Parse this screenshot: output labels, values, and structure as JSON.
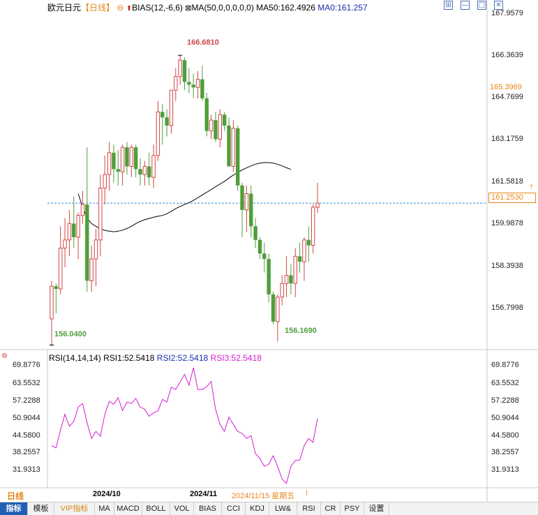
{
  "header": {
    "symbol": "欧元日元",
    "period": "【日线】",
    "indicator1": "BIAS(12,-6,6)",
    "indicator2": "MA(50,0,0,0,0,0)",
    "ma50_label": "MA50:162.4926",
    "ma0_label": "MA0:161.257",
    "controls": [
      "⊞",
      "—",
      "□",
      "✕"
    ]
  },
  "price_axis": {
    "ticks": [
      "167.9579",
      "166.3639",
      "164.7699",
      "163.1759",
      "161.5818",
      "159.9878",
      "158.3938",
      "156.7998"
    ],
    "current_price": "161.2530",
    "pointer_price": "165.3969"
  },
  "annotations": {
    "high_label": "166.6810",
    "low_label_1": "156.0400",
    "low_label_2": "156.1690"
  },
  "rsi_panel": {
    "title": "RSI(14,14,14)",
    "rsi1": "RSI1:52.5418",
    "rsi2": "RSI2:52.5418",
    "rsi3": "RSI3:52.5418",
    "ticks": [
      "69.8776",
      "63.5532",
      "57.2288",
      "50.9044",
      "44.5800",
      "38.2557",
      "31.9313"
    ]
  },
  "time_axis": {
    "period_label": "日线",
    "date1": "2024/10",
    "date2": "2024/11",
    "cursor_date": "2024/11/15 星期五"
  },
  "tabs": [
    "指标",
    "模板",
    "VIP指标",
    "MA",
    "MACD",
    "BOLL",
    "VOL",
    "BIAS",
    "CCI",
    "KDJ",
    "LW&",
    "RSI",
    "CR",
    "PSY",
    "设置"
  ],
  "colors": {
    "up": "#d04545",
    "down": "#4f9e3a",
    "ma": "#000000",
    "rsi": "#d21dd2",
    "accent": "#1f5fb5",
    "current": "#e8861a"
  },
  "chart_data": [
    {
      "type": "candlestick",
      "title": "欧元日元【日线】",
      "ylim": [
        156.0,
        168.3
      ],
      "series": [
        {
          "name": "candles",
          "ohlc": [
            [
              157.0,
              158.4,
              156.04,
              158.2
            ],
            [
              158.2,
              158.3,
              157.2,
              158.1
            ],
            [
              158.1,
              160.4,
              157.9,
              159.6
            ],
            [
              159.6,
              160.7,
              158.9,
              159.9
            ],
            [
              159.9,
              161.0,
              159.3,
              160.5
            ],
            [
              160.5,
              161.5,
              159.6,
              160.0
            ],
            [
              160.0,
              160.9,
              159.2,
              160.8
            ],
            [
              160.8,
              161.7,
              160.5,
              161.2
            ],
            [
              161.2,
              163.3,
              158.0,
              158.4
            ],
            [
              158.4,
              159.7,
              158.0,
              159.2
            ],
            [
              159.2,
              160.3,
              158.2,
              159.9
            ],
            [
              159.9,
              162.3,
              159.3,
              161.8
            ],
            [
              161.8,
              163.0,
              161.2,
              162.3
            ],
            [
              162.3,
              163.5,
              161.7,
              163.1
            ],
            [
              163.1,
              163.4,
              162.0,
              162.5
            ],
            [
              162.5,
              163.2,
              161.9,
              162.4
            ],
            [
              162.4,
              163.4,
              161.9,
              163.3
            ],
            [
              163.3,
              163.5,
              162.3,
              162.6
            ],
            [
              162.6,
              163.4,
              162.2,
              163.3
            ],
            [
              163.3,
              163.4,
              162.2,
              162.5
            ],
            [
              162.5,
              162.9,
              161.9,
              162.3
            ],
            [
              162.3,
              162.8,
              161.9,
              162.6
            ],
            [
              162.6,
              163.1,
              161.9,
              162.2
            ],
            [
              162.2,
              163.4,
              161.8,
              163.0
            ],
            [
              163.0,
              165.0,
              162.8,
              164.6
            ],
            [
              164.6,
              164.9,
              163.4,
              164.4
            ],
            [
              164.4,
              164.7,
              163.7,
              164.1
            ],
            [
              164.1,
              165.4,
              163.8,
              165.4
            ],
            [
              165.4,
              166.2,
              165.0,
              165.9
            ],
            [
              165.9,
              166.68,
              165.6,
              166.5
            ],
            [
              166.5,
              166.6,
              165.4,
              165.7
            ],
            [
              165.7,
              166.2,
              165.3,
              165.6
            ],
            [
              165.6,
              166.0,
              165.1,
              165.5
            ],
            [
              165.5,
              166.1,
              165.1,
              165.8
            ],
            [
              165.8,
              166.3,
              165.0,
              165.1
            ],
            [
              165.1,
              165.3,
              163.7,
              163.9
            ],
            [
              163.9,
              164.5,
              163.6,
              164.3
            ],
            [
              164.3,
              164.6,
              163.5,
              163.6
            ],
            [
              163.6,
              164.7,
              163.3,
              164.5
            ],
            [
              164.5,
              164.6,
              163.9,
              164.1
            ],
            [
              164.1,
              164.4,
              162.6,
              162.6
            ],
            [
              162.6,
              164.3,
              162.4,
              164.0
            ],
            [
              164.0,
              164.1,
              161.7,
              161.9
            ],
            [
              161.9,
              162.0,
              160.0,
              161.0
            ],
            [
              161.0,
              161.9,
              160.2,
              161.6
            ],
            [
              161.6,
              161.9,
              160.0,
              160.4
            ],
            [
              160.4,
              160.7,
              159.6,
              159.9
            ],
            [
              159.9,
              160.0,
              159.2,
              159.4
            ],
            [
              159.4,
              159.8,
              158.7,
              159.2
            ],
            [
              159.2,
              159.4,
              157.6,
              157.9
            ],
            [
              157.9,
              158.0,
              156.8,
              156.9
            ],
            [
              156.9,
              157.9,
              156.169,
              157.8
            ],
            [
              157.8,
              158.6,
              157.5,
              158.3
            ],
            [
              158.3,
              159.3,
              157.8,
              158.6
            ],
            [
              158.6,
              159.0,
              157.9,
              158.3
            ],
            [
              158.3,
              159.6,
              157.8,
              159.3
            ],
            [
              159.3,
              159.8,
              158.7,
              159.1
            ],
            [
              159.1,
              160.0,
              158.4,
              159.9
            ],
            [
              159.9,
              160.4,
              159.1,
              159.7
            ],
            [
              159.7,
              161.2,
              159.4,
              161.1
            ],
            [
              161.1,
              162.0,
              160.9,
              161.25
            ]
          ]
        },
        {
          "name": "MA50",
          "values": [
            161.6,
            161.1,
            160.7,
            160.5,
            160.4,
            160.3,
            160.25,
            160.22,
            160.2,
            160.22,
            160.26,
            160.32,
            160.4,
            160.5,
            160.58,
            160.64,
            160.69,
            160.73,
            160.77,
            160.8,
            160.86,
            160.95,
            161.05,
            161.13,
            161.2,
            161.27,
            161.35,
            161.45,
            161.55,
            161.65,
            161.75,
            161.85,
            161.95,
            162.05,
            162.17,
            162.28,
            162.38,
            162.47,
            162.55,
            162.62,
            162.68,
            162.72,
            162.74,
            162.74,
            162.72,
            162.68,
            162.62,
            162.55,
            162.49
          ]
        }
      ]
    },
    {
      "type": "line",
      "title": "RSI(14,14,14)",
      "ylim": [
        28.5,
        72.0
      ],
      "series": [
        {
          "name": "RSI1",
          "values": [
            43.0,
            42.2,
            48.5,
            54.0,
            49.8,
            51.5,
            56.5,
            57.8,
            51.0,
            45.5,
            48.0,
            46.3,
            54.0,
            58.5,
            57.5,
            59.8,
            55.3,
            58.2,
            57.8,
            59.5,
            56.5,
            55.8,
            53.3,
            54.5,
            55.2,
            59.2,
            58.3,
            63.5,
            62.7,
            65.3,
            68.0,
            64.2,
            70.3,
            62.7,
            62.7,
            63.7,
            65.5,
            55.8,
            50.5,
            48.0,
            53.0,
            50.5,
            48.0,
            47.3,
            45.5,
            46.5,
            40.2,
            38.5,
            35.8,
            36.5,
            39.5,
            35.8,
            31.3,
            29.8,
            35.8,
            37.8,
            38.0,
            43.0,
            45.5,
            44.2,
            52.54
          ]
        }
      ]
    }
  ]
}
